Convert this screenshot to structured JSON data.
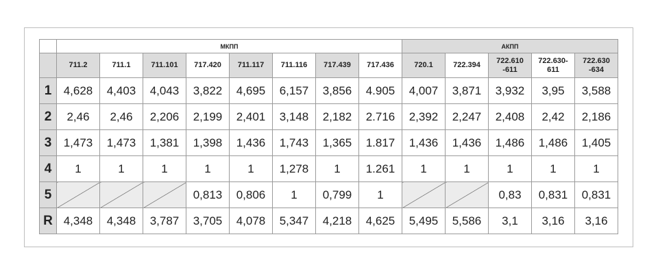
{
  "table": {
    "groups": [
      {
        "label": "МКПП",
        "span": 8
      },
      {
        "label": "АКПП",
        "span": 5
      }
    ],
    "columns": [
      "711.2",
      "711.1",
      "711.101",
      "717.420",
      "711.117",
      "711.116",
      "717.439",
      "717.436",
      "720.1",
      "722.394",
      "722.610\n-611",
      "722.630-\n611",
      "722.630\n-634"
    ],
    "rows": [
      {
        "label": "1",
        "cells": [
          "4,628",
          "4,403",
          "4,043",
          "3,822",
          "4,695",
          "6,157",
          "3,856",
          "4.905",
          "4,007",
          "3,871",
          "3,932",
          "3,95",
          "3,588"
        ]
      },
      {
        "label": "2",
        "cells": [
          "2,46",
          "2,46",
          "2,206",
          "2,199",
          "2,401",
          "3,148",
          "2,182",
          "2.716",
          "2,392",
          "2,247",
          "2,408",
          "2,42",
          "2,186"
        ]
      },
      {
        "label": "3",
        "cells": [
          "1,473",
          "1,473",
          "1,381",
          "1,398",
          "1,436",
          "1,743",
          "1,365",
          "1.817",
          "1,436",
          "1,436",
          "1,486",
          "1,486",
          "1,405"
        ]
      },
      {
        "label": "4",
        "cells": [
          "1",
          "1",
          "1",
          "1",
          "1",
          "1,278",
          "1",
          "1.261",
          "1",
          "1",
          "1",
          "1",
          "1"
        ]
      },
      {
        "label": "5",
        "cells": [
          null,
          null,
          null,
          "0,813",
          "0,806",
          "1",
          "0,799",
          "1",
          null,
          null,
          "0,83",
          "0,831",
          "0,831"
        ]
      },
      {
        "label": "R",
        "cells": [
          "4,348",
          "4,348",
          "3,787",
          "3,705",
          "4,078",
          "5,347",
          "4,218",
          "4,625",
          "5,495",
          "5,586",
          "3,1",
          "3,16",
          "3,16"
        ]
      }
    ]
  }
}
